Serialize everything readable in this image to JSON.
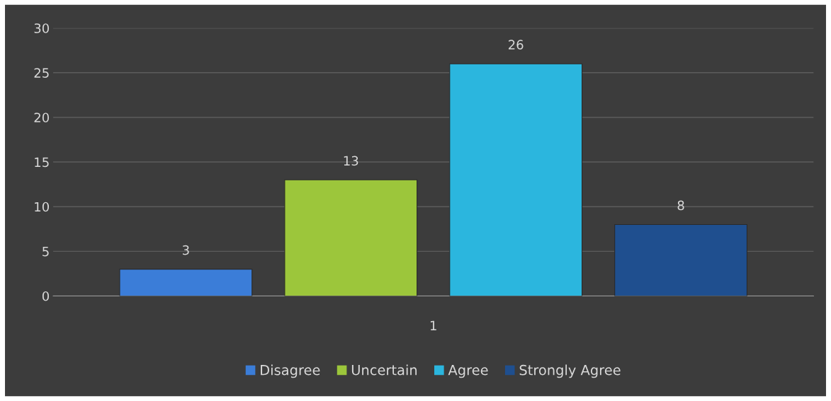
{
  "chart_data": {
    "type": "bar",
    "categories": [
      "1"
    ],
    "series": [
      {
        "name": "Disagree",
        "color": "#3b7dd8",
        "values": [
          3
        ]
      },
      {
        "name": "Uncertain",
        "color": "#9cc63b",
        "values": [
          13
        ]
      },
      {
        "name": "Agree",
        "color": "#2bb6de",
        "values": [
          26
        ]
      },
      {
        "name": "Strongly Agree",
        "color": "#1f4f8f",
        "values": [
          8
        ]
      }
    ],
    "ylim": [
      0,
      30
    ],
    "yticks": [
      0,
      5,
      10,
      15,
      20,
      25,
      30
    ],
    "grid": "y",
    "legend": "bottom",
    "data_labels": true
  }
}
